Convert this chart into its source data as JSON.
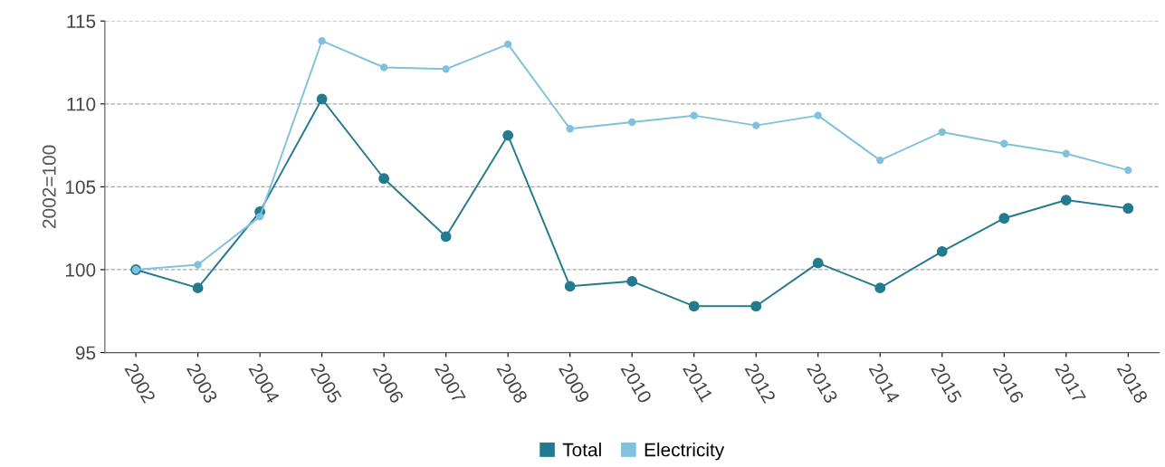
{
  "chart_data": {
    "type": "line",
    "ylabel": "2002=100",
    "categories": [
      "2002",
      "2003",
      "2004",
      "2005",
      "2006",
      "2007",
      "2008",
      "2009",
      "2010",
      "2011",
      "2012",
      "2013",
      "2014",
      "2015",
      "2016",
      "2017",
      "2018"
    ],
    "series": [
      {
        "name": "Total",
        "color": "#237b8e",
        "values": [
          100.0,
          98.9,
          103.5,
          110.3,
          105.5,
          102.0,
          108.1,
          99.0,
          99.3,
          97.8,
          97.8,
          100.4,
          98.9,
          101.1,
          103.1,
          104.2,
          103.7
        ]
      },
      {
        "name": "Electricity",
        "color": "#7fc1de",
        "values": [
          100.0,
          100.3,
          103.2,
          113.8,
          112.2,
          112.1,
          113.6,
          108.5,
          108.9,
          109.3,
          108.7,
          109.3,
          106.6,
          108.3,
          107.6,
          107.0,
          106.0
        ]
      }
    ],
    "ylim": [
      95,
      115
    ],
    "yticks": [
      95,
      100,
      105,
      110,
      115
    ],
    "grid": "y",
    "legend": "bottom",
    "marker": "circle",
    "line_style": "solid"
  }
}
